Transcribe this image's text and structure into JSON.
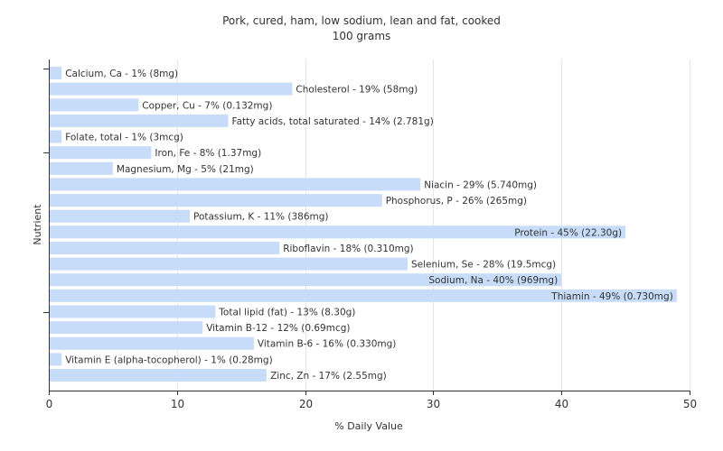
{
  "chart_data": {
    "type": "bar",
    "orientation": "horizontal",
    "title": "Pork, cured, ham, low sodium, lean and fat, cooked",
    "subtitle": "100 grams",
    "xlabel": "% Daily Value",
    "ylabel": "Nutrient",
    "xlim": [
      0,
      50
    ],
    "xticks": [
      "0",
      "10",
      "20",
      "30",
      "40",
      "50"
    ],
    "grid": true,
    "bar_color": "#c6dcf8",
    "categories": [
      "Calcium, Ca",
      "Cholesterol",
      "Copper, Cu",
      "Fatty acids, total saturated",
      "Folate, total",
      "Iron, Fe",
      "Magnesium, Mg",
      "Niacin",
      "Phosphorus, P",
      "Potassium, K",
      "Protein",
      "Riboflavin",
      "Selenium, Se",
      "Sodium, Na",
      "Thiamin",
      "Total lipid (fat)",
      "Vitamin B-12",
      "Vitamin B-6",
      "Vitamin E (alpha-tocopherol)",
      "Zinc, Zn"
    ],
    "values": [
      1,
      19,
      7,
      14,
      1,
      8,
      5,
      29,
      26,
      11,
      45,
      18,
      28,
      40,
      49,
      13,
      12,
      16,
      1,
      17
    ],
    "labels": [
      "Calcium, Ca - 1% (8mg)",
      "Cholesterol - 19% (58mg)",
      "Copper, Cu - 7% (0.132mg)",
      "Fatty acids, total saturated - 14% (2.781g)",
      "Folate, total - 1% (3mcg)",
      "Iron, Fe - 8% (1.37mg)",
      "Magnesium, Mg - 5% (21mg)",
      "Niacin - 29% (5.740mg)",
      "Phosphorus, P - 26% (265mg)",
      "Potassium, K - 11% (386mg)",
      "Protein - 45% (22.30g)",
      "Riboflavin - 18% (0.310mg)",
      "Selenium, Se - 28% (19.5mcg)",
      "Sodium, Na - 40% (969mg)",
      "Thiamin - 49% (0.730mg)",
      "Total lipid (fat) - 13% (8.30g)",
      "Vitamin B-12 - 12% (0.69mcg)",
      "Vitamin B-6 - 16% (0.330mg)",
      "Vitamin E (alpha-tocopherol) - 1% (0.28mg)",
      "Zinc, Zn - 17% (2.55mg)"
    ]
  }
}
